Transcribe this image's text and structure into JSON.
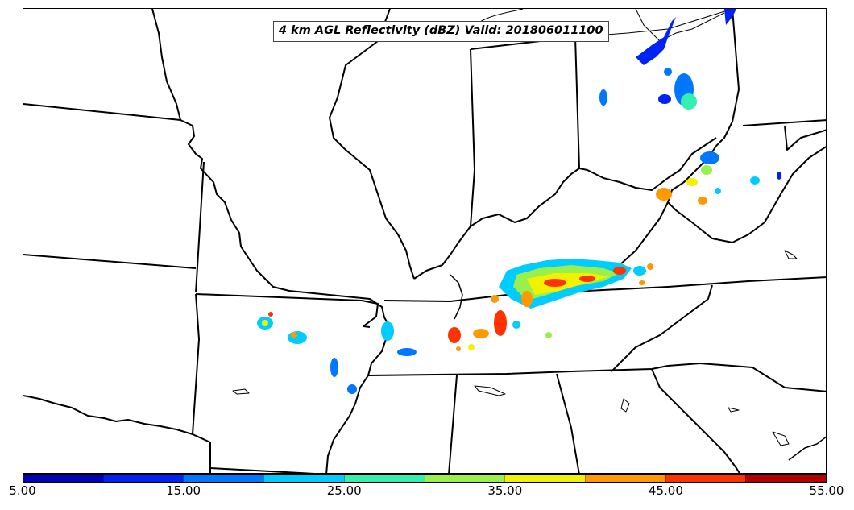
{
  "map": {
    "title": "4 km AGL Reflectivity (dBZ) Valid: 201806011100",
    "boundary_color": "#000000"
  },
  "colorbar": {
    "min": 5.0,
    "max": 55.0,
    "tick_labels": [
      "5.00",
      "15.00",
      "25.00",
      "35.00",
      "45.00",
      "55.00"
    ],
    "colors": [
      "#0000b8",
      "#0022f5",
      "#0077ff",
      "#00ccff",
      "#33f0b0",
      "#99f04d",
      "#f2f200",
      "#ff9900",
      "#ff3300",
      "#b30000"
    ]
  }
}
